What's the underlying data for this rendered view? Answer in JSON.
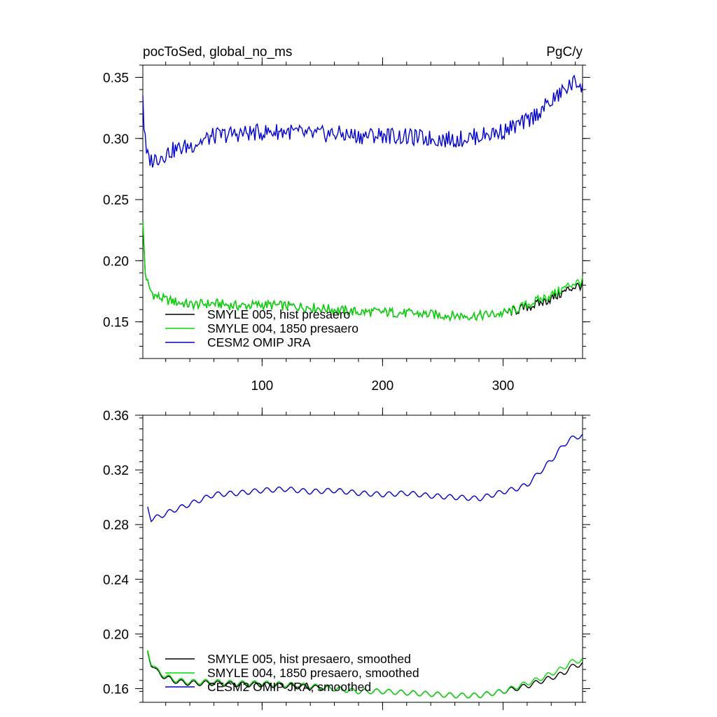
{
  "chart_data": [
    {
      "type": "line",
      "title_left": "pocToSed, global_no_ms",
      "title_right": "PgC/y",
      "xlim": [
        1,
        366
      ],
      "ylim": [
        0.12,
        0.36
      ],
      "xticks": [
        100,
        200,
        300
      ],
      "xtick_labels": [
        "100",
        "200",
        "300"
      ],
      "yticks": [
        0.15,
        0.2,
        0.25,
        0.3,
        0.35
      ],
      "ytick_labels": [
        "0.15",
        "0.20",
        "0.25",
        "0.30",
        "0.35"
      ],
      "legend_position": "lower-left",
      "series": [
        {
          "name": "SMYLE 005, hist presaero",
          "color": "#000000",
          "x": [
            1,
            3,
            6,
            10,
            20,
            40,
            60,
            80,
            100,
            120,
            140,
            160,
            180,
            200,
            220,
            240,
            260,
            280,
            300,
            310,
            320,
            330,
            340,
            350,
            355,
            360,
            366
          ],
          "y": [
            0.231,
            0.19,
            0.178,
            0.172,
            0.168,
            0.164,
            0.165,
            0.163,
            0.164,
            0.163,
            0.162,
            0.16,
            0.158,
            0.158,
            0.157,
            0.156,
            0.155,
            0.155,
            0.157,
            0.159,
            0.162,
            0.165,
            0.169,
            0.174,
            0.177,
            0.179,
            0.18
          ]
        },
        {
          "name": "SMYLE 004, 1850 presaero",
          "color": "#00dd00",
          "x": [
            1,
            3,
            6,
            10,
            20,
            40,
            60,
            80,
            100,
            120,
            140,
            160,
            180,
            200,
            220,
            240,
            260,
            280,
            300,
            310,
            320,
            330,
            340,
            350,
            355,
            360,
            366
          ],
          "y": [
            0.231,
            0.19,
            0.178,
            0.172,
            0.168,
            0.164,
            0.165,
            0.163,
            0.164,
            0.163,
            0.162,
            0.16,
            0.158,
            0.158,
            0.157,
            0.156,
            0.155,
            0.155,
            0.157,
            0.16,
            0.164,
            0.168,
            0.172,
            0.177,
            0.18,
            0.182,
            0.183
          ]
        },
        {
          "name": "CESM2 OMIP JRA",
          "color": "#0000cc",
          "x": [
            1,
            2,
            4,
            8,
            15,
            25,
            40,
            60,
            80,
            100,
            120,
            140,
            160,
            180,
            200,
            220,
            240,
            260,
            280,
            300,
            310,
            320,
            330,
            340,
            350,
            355,
            360,
            366
          ],
          "y": [
            0.336,
            0.31,
            0.286,
            0.282,
            0.285,
            0.29,
            0.294,
            0.302,
            0.304,
            0.305,
            0.306,
            0.303,
            0.304,
            0.302,
            0.303,
            0.301,
            0.3,
            0.299,
            0.302,
            0.306,
            0.31,
            0.314,
            0.322,
            0.33,
            0.339,
            0.343,
            0.346,
            0.344
          ]
        }
      ]
    },
    {
      "type": "line",
      "xlim": [
        1,
        366
      ],
      "ylim": [
        0.15,
        0.36
      ],
      "xticks": [
        100,
        200,
        300
      ],
      "xtick_labels": [],
      "yticks": [
        0.16,
        0.2,
        0.24,
        0.28,
        0.32,
        0.36
      ],
      "ytick_labels": [
        "0.16",
        "0.20",
        "0.24",
        "0.28",
        "0.32",
        "0.36"
      ],
      "legend_position": "lower-left",
      "series": [
        {
          "name": "SMYLE 005, hist presaero, smoothed",
          "color": "#000000",
          "x": [
            5,
            8,
            12,
            20,
            30,
            40,
            60,
            80,
            100,
            120,
            140,
            160,
            180,
            200,
            220,
            240,
            260,
            280,
            300,
            310,
            320,
            330,
            340,
            350,
            355,
            360,
            366
          ],
          "y": [
            0.187,
            0.178,
            0.173,
            0.168,
            0.165,
            0.164,
            0.164,
            0.163,
            0.163,
            0.162,
            0.161,
            0.16,
            0.158,
            0.158,
            0.157,
            0.156,
            0.155,
            0.155,
            0.158,
            0.16,
            0.162,
            0.165,
            0.168,
            0.171,
            0.175,
            0.177,
            0.178
          ]
        },
        {
          "name": "SMYLE 004, 1850 presaero, smoothed",
          "color": "#00dd00",
          "x": [
            5,
            8,
            12,
            20,
            30,
            40,
            60,
            80,
            100,
            120,
            140,
            160,
            180,
            200,
            220,
            240,
            260,
            280,
            300,
            310,
            320,
            330,
            340,
            350,
            355,
            360,
            366
          ],
          "y": [
            0.188,
            0.179,
            0.174,
            0.169,
            0.166,
            0.165,
            0.165,
            0.164,
            0.164,
            0.163,
            0.162,
            0.16,
            0.158,
            0.158,
            0.157,
            0.156,
            0.155,
            0.155,
            0.158,
            0.161,
            0.164,
            0.167,
            0.171,
            0.175,
            0.179,
            0.18,
            0.181
          ]
        },
        {
          "name": "CESM2 OMIP JRA, smoothed",
          "color": "#0000cc",
          "x": [
            5,
            8,
            15,
            25,
            40,
            60,
            80,
            100,
            120,
            140,
            160,
            180,
            200,
            220,
            240,
            260,
            280,
            300,
            310,
            320,
            330,
            340,
            350,
            355,
            360,
            366
          ],
          "y": [
            0.293,
            0.284,
            0.286,
            0.29,
            0.295,
            0.302,
            0.303,
            0.305,
            0.306,
            0.304,
            0.305,
            0.303,
            0.302,
            0.303,
            0.301,
            0.3,
            0.299,
            0.304,
            0.306,
            0.309,
            0.318,
            0.327,
            0.338,
            0.342,
            0.344,
            0.345
          ]
        }
      ]
    }
  ]
}
